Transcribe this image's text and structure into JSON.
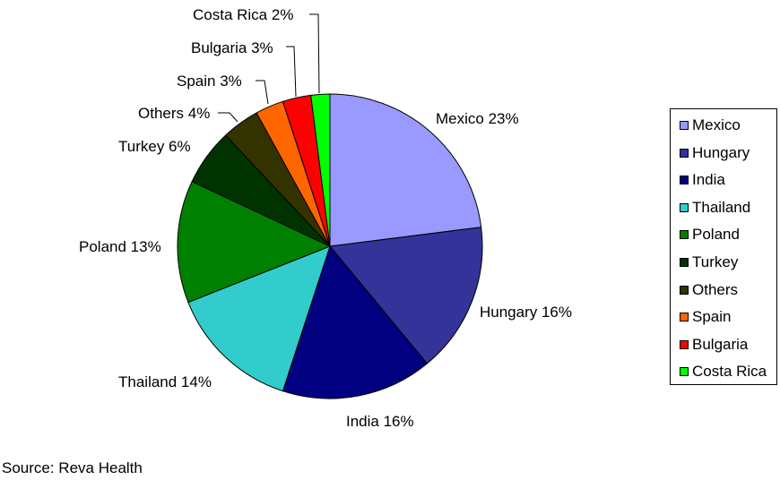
{
  "chart_data": {
    "type": "pie",
    "title": "",
    "categories": [
      "Mexico",
      "Hungary",
      "India",
      "Thailand",
      "Poland",
      "Turkey",
      "Others",
      "Spain",
      "Bulgaria",
      "Costa Rica"
    ],
    "values": [
      23,
      16,
      16,
      14,
      13,
      6,
      4,
      3,
      3,
      2
    ],
    "value_suffix": "%",
    "colors": [
      "#9999ff",
      "#333399",
      "#000080",
      "#33cccc",
      "#008000",
      "#003300",
      "#333300",
      "#ff6600",
      "#ff0000",
      "#00ff00"
    ],
    "slice_labels": [
      "Mexico 23%",
      "Hungary 16%",
      "India 16%",
      "Thailand 14%",
      "Poland 13%",
      "Turkey 6%",
      "Others 4%",
      "Spain 3%",
      "Bulgaria 3%",
      "Costa Rica 2%"
    ],
    "legend_position": "right"
  },
  "source": "Source: Reva Health"
}
